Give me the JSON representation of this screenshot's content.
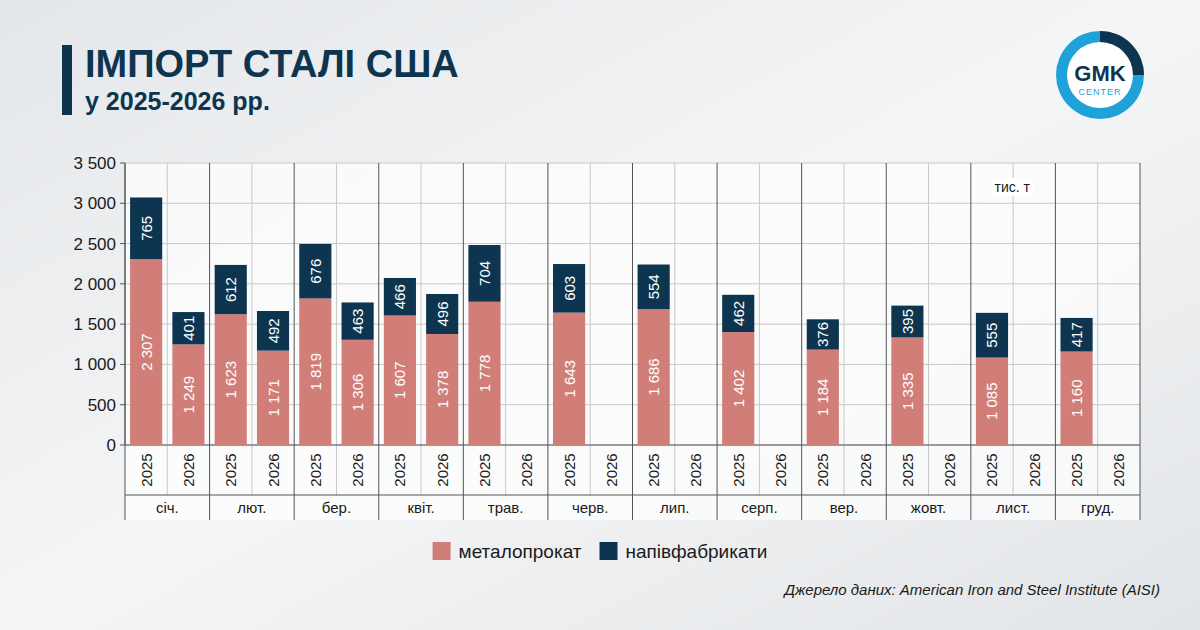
{
  "chart_data": {
    "type": "bar",
    "title": "ІМПОРТ СТАЛІ США",
    "subtitle": "у 2025-2026 рр.",
    "unit": "тис. т",
    "source": "Джерело даних: American Iron and Steel Institute (AISI)",
    "logo_text": [
      "GMK",
      "CENTER"
    ],
    "categories": [
      "2025",
      "2026",
      "2025",
      "2026",
      "2025",
      "2026",
      "2025",
      "2026",
      "2025",
      "2026",
      "2025",
      "2026",
      "2025",
      "2026",
      "2025",
      "2026",
      "2025",
      "2026",
      "2025",
      "2026",
      "2025",
      "2026",
      "2025",
      "2026"
    ],
    "category_groups": [
      "січ.",
      "лют.",
      "бер.",
      "квіт.",
      "трав.",
      "черв.",
      "лип.",
      "серп.",
      "вер.",
      "жовт.",
      "лист.",
      "груд."
    ],
    "series": [
      {
        "name": "металопрокат",
        "color": "#d17e79",
        "values": [
          2307,
          1249,
          1623,
          1171,
          1819,
          1306,
          1607,
          1378,
          1778,
          null,
          1643,
          null,
          1686,
          null,
          1402,
          null,
          1184,
          null,
          1335,
          null,
          1085,
          null,
          1160,
          null
        ],
        "value_labels": [
          "2 307",
          "1 249",
          "1 623",
          "1 171",
          "1 819",
          "1 306",
          "1 607",
          "1 378",
          "1 778",
          null,
          "1 643",
          null,
          "1 686",
          null,
          "1 402",
          null,
          "1 184",
          null,
          "1 335",
          null,
          "1 085",
          null,
          "1 160",
          null
        ]
      },
      {
        "name": "напівфабрикати",
        "color": "#0d3550",
        "values": [
          765,
          401,
          612,
          492,
          676,
          463,
          466,
          496,
          704,
          null,
          603,
          null,
          554,
          null,
          462,
          null,
          376,
          null,
          395,
          null,
          555,
          null,
          417,
          null
        ]
      }
    ],
    "ylim": [
      0,
      3500
    ],
    "yticks": [
      0,
      500,
      {
        "value": 1000,
        "label": "1 000"
      },
      {
        "value": 1500,
        "label": "1 500"
      },
      {
        "value": 2000,
        "label": "2 000"
      },
      {
        "value": 2500,
        "label": "2 500"
      },
      {
        "value": 3000,
        "label": "3 000"
      },
      {
        "value": 3500,
        "label": "3 500"
      }
    ],
    "stacked": true,
    "data_labels": true,
    "grid": true,
    "legend": "bottom"
  }
}
